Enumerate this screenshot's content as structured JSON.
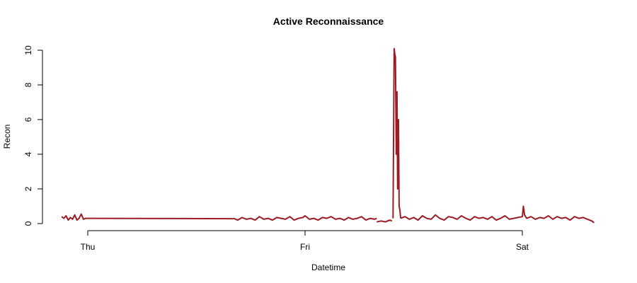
{
  "chart_data": {
    "type": "line",
    "title": "Active Reconnaissance",
    "xlabel": "Datetime",
    "ylabel": "Recon",
    "ylim": [
      0,
      10
    ],
    "yticks": [
      0,
      2,
      4,
      6,
      8,
      10
    ],
    "xlim": [
      -0.2,
      2.35
    ],
    "xticks": [
      {
        "value": 0,
        "label": "Thu"
      },
      {
        "value": 1,
        "label": "Fri"
      },
      {
        "value": 2,
        "label": "Sat"
      }
    ],
    "grid": false,
    "line_color": "#9b1c24",
    "series": [
      {
        "segments": [
          {
            "x": [
              -0.12,
              -0.11,
              -0.1,
              -0.09,
              -0.08,
              -0.07,
              -0.06,
              -0.05,
              -0.04,
              -0.03,
              -0.02,
              -0.01,
              0.0
            ],
            "y": [
              0.4,
              0.3,
              0.45,
              0.2,
              0.35,
              0.25,
              0.5,
              0.2,
              0.3,
              0.55,
              0.25,
              0.3,
              0.3
            ]
          },
          {
            "x": [
              0.0,
              0.67
            ],
            "y": [
              0.3,
              0.28
            ]
          },
          {
            "x": [
              0.67,
              0.69,
              0.71,
              0.73,
              0.75,
              0.77,
              0.79,
              0.81,
              0.83,
              0.85,
              0.87,
              0.89,
              0.91,
              0.93,
              0.95,
              0.97,
              0.99,
              1.0,
              1.02,
              1.04,
              1.06,
              1.08,
              1.1,
              1.12,
              1.14,
              1.16,
              1.18,
              1.2,
              1.22,
              1.24,
              1.26,
              1.28,
              1.3,
              1.32,
              1.33
            ],
            "y": [
              0.3,
              0.2,
              0.35,
              0.25,
              0.3,
              0.2,
              0.4,
              0.25,
              0.3,
              0.2,
              0.35,
              0.3,
              0.25,
              0.4,
              0.2,
              0.3,
              0.35,
              0.45,
              0.25,
              0.3,
              0.2,
              0.35,
              0.3,
              0.4,
              0.25,
              0.3,
              0.2,
              0.35,
              0.25,
              0.3,
              0.4,
              0.2,
              0.3,
              0.25,
              0.3
            ]
          },
          {
            "x": [
              1.33,
              1.35,
              1.37,
              1.39,
              1.4
            ],
            "y": [
              0.1,
              0.15,
              0.1,
              0.2,
              0.15
            ]
          },
          {
            "x": [
              1.405,
              1.41,
              1.413,
              1.416,
              1.42,
              1.423,
              1.426,
              1.43,
              1.433,
              1.436,
              1.44
            ],
            "y": [
              0.3,
              10.1,
              9.8,
              9.6,
              4.0,
              7.6,
              2.0,
              6.0,
              1.0,
              0.8,
              0.3
            ]
          },
          {
            "x": [
              1.44,
              1.46,
              1.48,
              1.5,
              1.52,
              1.54,
              1.56,
              1.58,
              1.6,
              1.62,
              1.64,
              1.66,
              1.68,
              1.7,
              1.72,
              1.74,
              1.76,
              1.78,
              1.8,
              1.82,
              1.84,
              1.86,
              1.88,
              1.9,
              1.92,
              1.94,
              1.96,
              1.98,
              2.0,
              2.005,
              2.01,
              2.02,
              2.04,
              2.06,
              2.08,
              2.1,
              2.12,
              2.14,
              2.16,
              2.18,
              2.2,
              2.22,
              2.24,
              2.26,
              2.28,
              2.3,
              2.32,
              2.33
            ],
            "y": [
              0.3,
              0.4,
              0.25,
              0.35,
              0.2,
              0.45,
              0.3,
              0.25,
              0.5,
              0.3,
              0.2,
              0.4,
              0.35,
              0.25,
              0.45,
              0.3,
              0.2,
              0.4,
              0.3,
              0.35,
              0.25,
              0.4,
              0.2,
              0.3,
              0.45,
              0.25,
              0.3,
              0.35,
              0.4,
              1.0,
              0.5,
              0.3,
              0.4,
              0.25,
              0.35,
              0.3,
              0.45,
              0.25,
              0.4,
              0.3,
              0.35,
              0.2,
              0.4,
              0.3,
              0.35,
              0.25,
              0.15,
              0.05
            ]
          }
        ]
      }
    ]
  }
}
